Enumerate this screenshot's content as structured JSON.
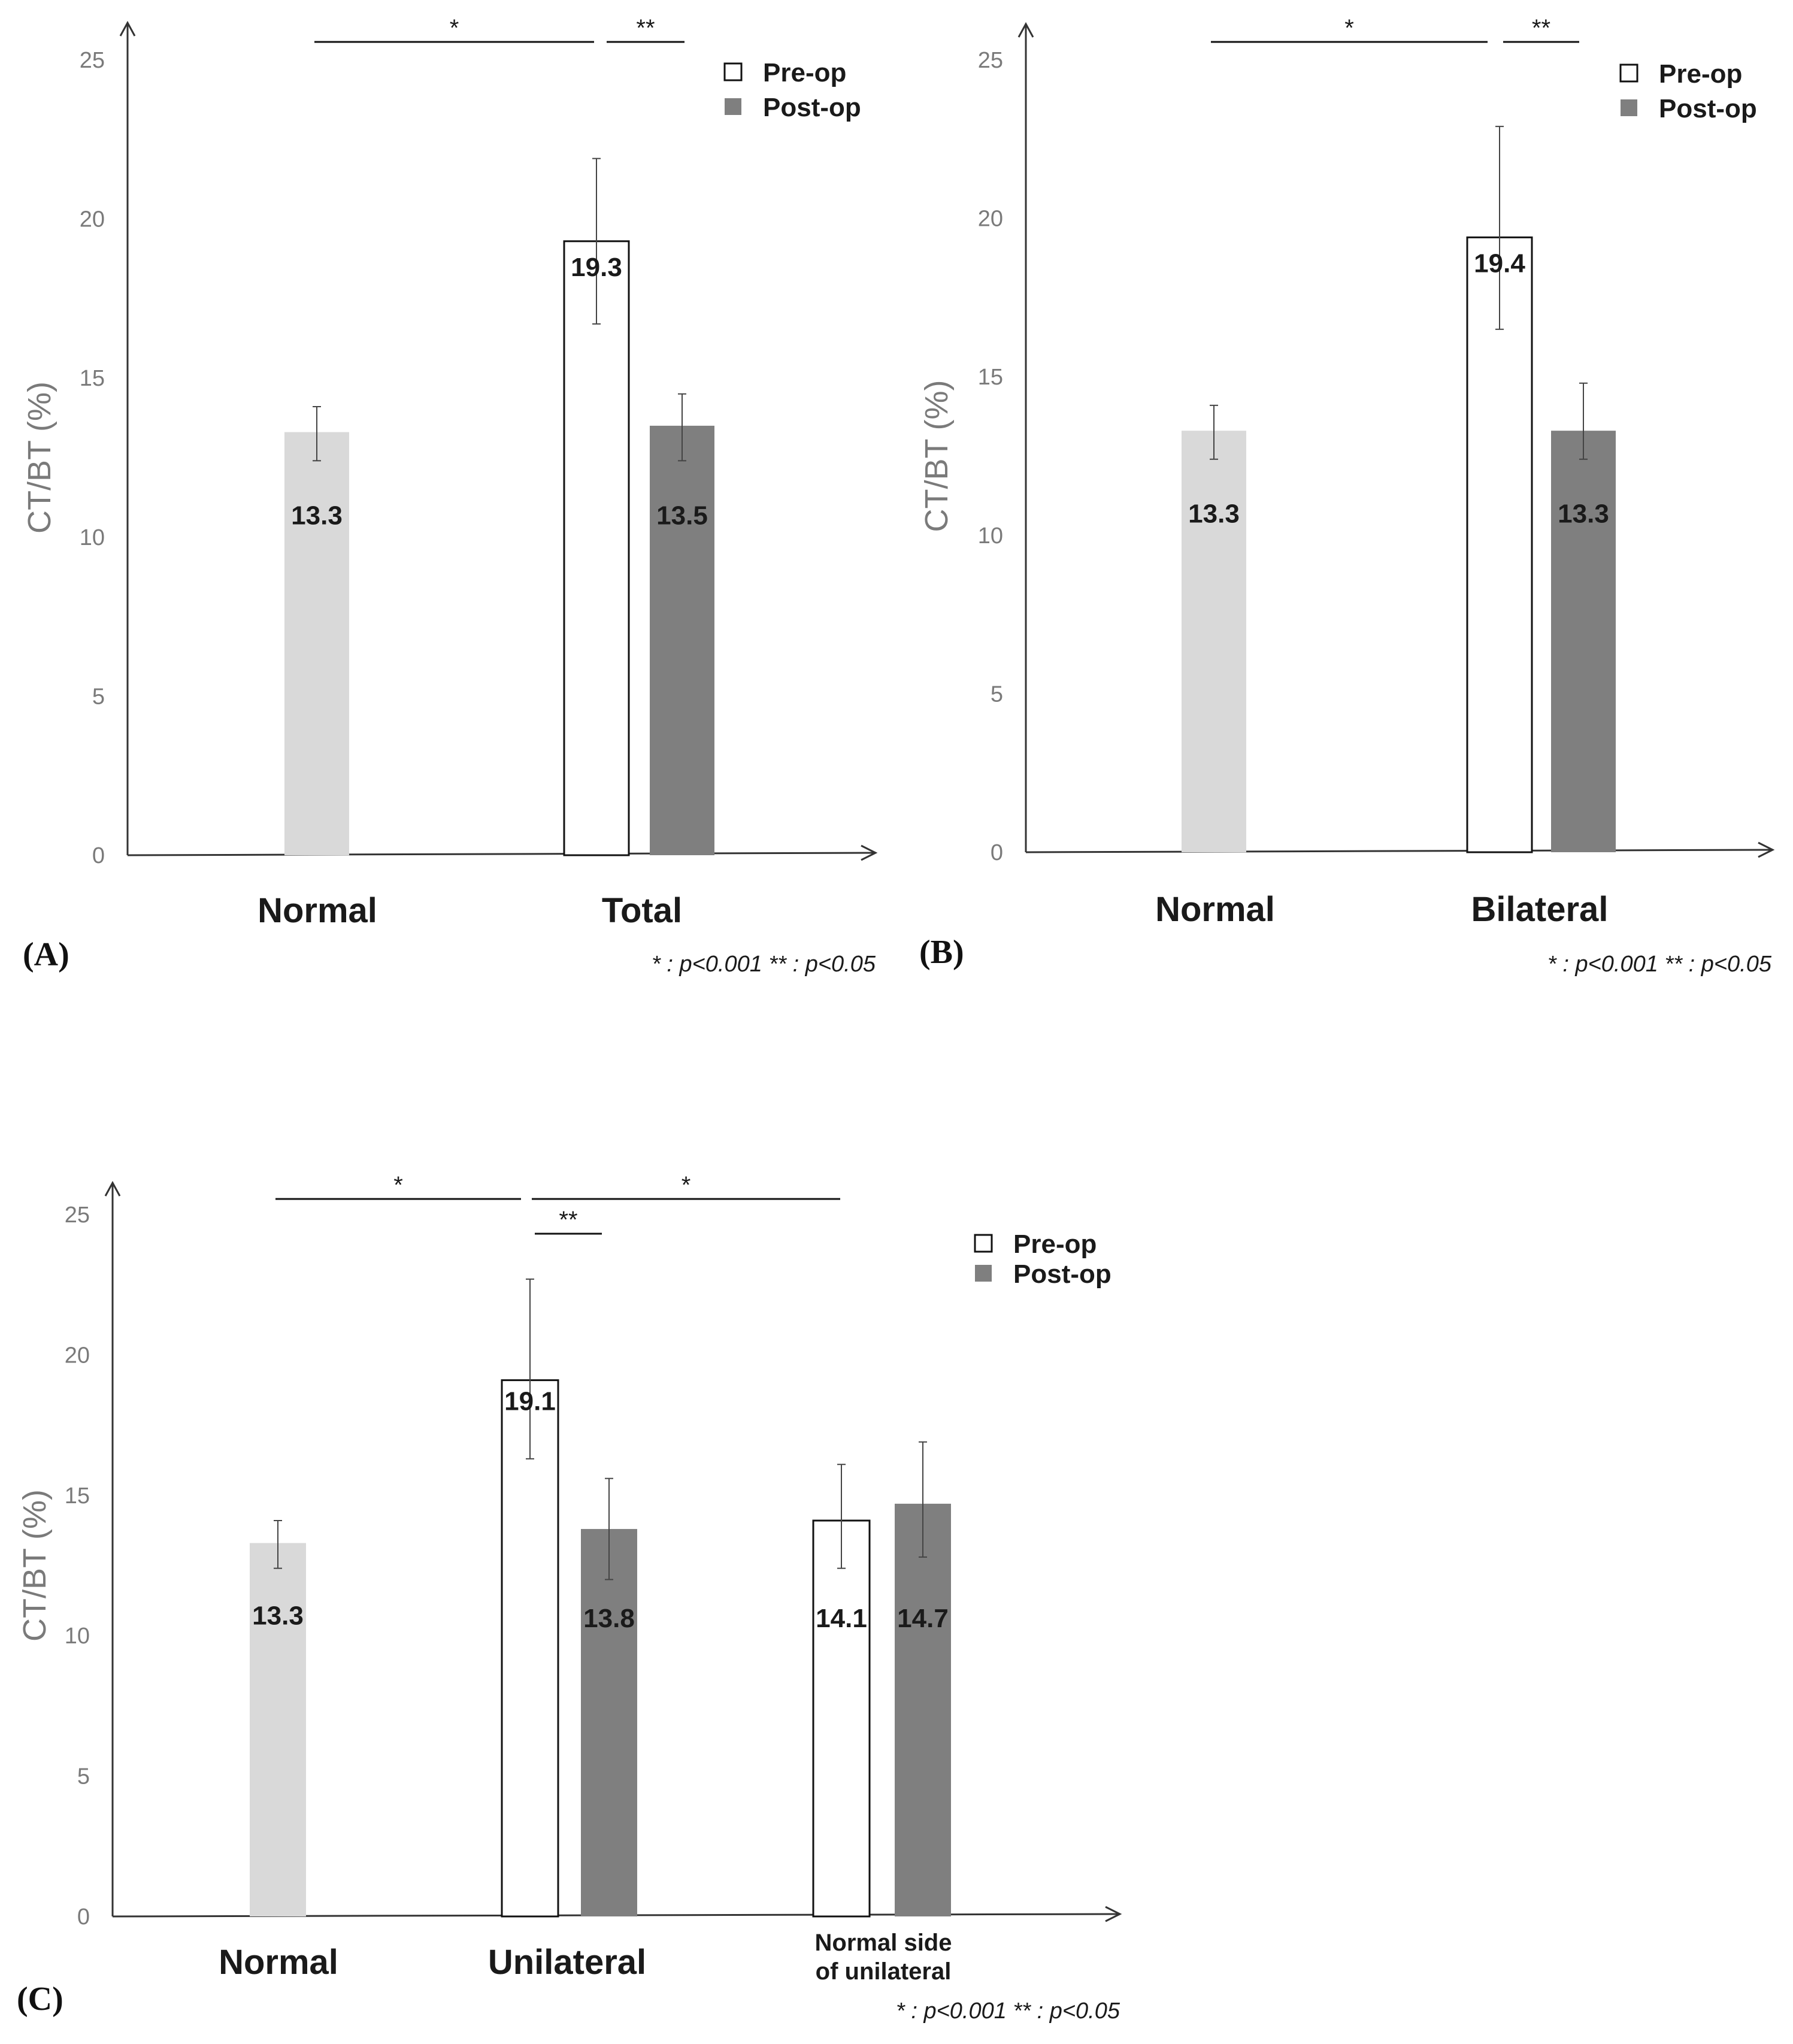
{
  "colors": {
    "normal": "#d9d9d9",
    "pre_op": "#ffffff",
    "post_op": "#7f7f7f",
    "axis": "#333333",
    "tick_text": "#7a7a7a"
  },
  "chart_data": [
    {
      "panel": "(A)",
      "type": "bar",
      "ylabel": "CT/BT (%)",
      "ylim": [
        0,
        25
      ],
      "yticks": [
        "0",
        "5",
        "10",
        "15",
        "20",
        "25"
      ],
      "categories": [
        "Normal",
        "Total"
      ],
      "legend": [
        {
          "label": "Pre-op",
          "icon": "open-square-icon"
        },
        {
          "label": "Post-op",
          "icon": "filled-square-icon"
        }
      ],
      "bars": [
        {
          "category": "Normal",
          "series": "Normal",
          "value": 13.3,
          "label": "13.3",
          "err_low": 12.4,
          "err_high": 14.1
        },
        {
          "category": "Total",
          "series": "Pre-op",
          "value": 19.3,
          "label": "19.3",
          "err_low": 16.7,
          "err_high": 21.9
        },
        {
          "category": "Total",
          "series": "Post-op",
          "value": 13.5,
          "label": "13.5",
          "err_low": 12.4,
          "err_high": 14.5
        }
      ],
      "significance": [
        {
          "label": "*",
          "from": "Normal",
          "to": "Total Pre-op"
        },
        {
          "label": "**",
          "from": "Total Pre-op",
          "to": "Total Post-op"
        }
      ],
      "note": "* : p<0.001   ** : p<0.05"
    },
    {
      "panel": "(B)",
      "type": "bar",
      "ylabel": "CT/BT (%)",
      "ylim": [
        0,
        25
      ],
      "yticks": [
        "0",
        "5",
        "10",
        "15",
        "20",
        "25"
      ],
      "categories": [
        "Normal",
        "Bilateral"
      ],
      "legend": [
        {
          "label": "Pre-op",
          "icon": "open-square-icon"
        },
        {
          "label": "Post-op",
          "icon": "filled-square-icon"
        }
      ],
      "bars": [
        {
          "category": "Normal",
          "series": "Normal",
          "value": 13.3,
          "label": "13.3",
          "err_low": 12.4,
          "err_high": 14.1
        },
        {
          "category": "Bilateral",
          "series": "Pre-op",
          "value": 19.4,
          "label": "19.4",
          "err_low": 16.5,
          "err_high": 22.9
        },
        {
          "category": "Bilateral",
          "series": "Post-op",
          "value": 13.3,
          "label": "13.3",
          "err_low": 12.4,
          "err_high": 14.8
        }
      ],
      "significance": [
        {
          "label": "*",
          "from": "Normal",
          "to": "Bilateral Pre-op"
        },
        {
          "label": "**",
          "from": "Bilateral Pre-op",
          "to": "Bilateral Post-op"
        }
      ],
      "note": "* : p<0.001   ** : p<0.05"
    },
    {
      "panel": "(C)",
      "type": "bar",
      "ylabel": "CT/BT (%)",
      "ylim": [
        0,
        25
      ],
      "yticks": [
        "0",
        "5",
        "10",
        "15",
        "20",
        "25"
      ],
      "categories": [
        "Normal",
        "Unilateral",
        "Normal side of unilateral"
      ],
      "legend": [
        {
          "label": "Pre-op",
          "icon": "open-square-icon"
        },
        {
          "label": "Post-op",
          "icon": "filled-square-icon"
        }
      ],
      "bars": [
        {
          "category": "Normal",
          "series": "Normal",
          "value": 13.3,
          "label": "13.3",
          "err_low": 12.4,
          "err_high": 14.1
        },
        {
          "category": "Unilateral",
          "series": "Pre-op",
          "value": 19.1,
          "label": "19.1",
          "err_low": 16.3,
          "err_high": 22.7
        },
        {
          "category": "Unilateral",
          "series": "Post-op",
          "value": 13.8,
          "label": "13.8",
          "err_low": 12.0,
          "err_high": 15.6
        },
        {
          "category": "Normal side of unilateral",
          "series": "Pre-op",
          "value": 14.1,
          "label": "14.1",
          "err_low": 12.4,
          "err_high": 16.1
        },
        {
          "category": "Normal side of unilateral",
          "series": "Post-op",
          "value": 14.7,
          "label": "14.7",
          "err_low": 12.8,
          "err_high": 16.9
        }
      ],
      "significance": [
        {
          "label": "*",
          "from": "Normal",
          "to": "Unilateral Pre-op"
        },
        {
          "label": "*",
          "from": "Unilateral Pre-op",
          "to": "Normal side of unilateral Pre-op"
        },
        {
          "label": "**",
          "from": "Unilateral Pre-op",
          "to": "Unilateral Post-op"
        }
      ],
      "note": "* : p<0.001   ** : p<0.05"
    }
  ]
}
